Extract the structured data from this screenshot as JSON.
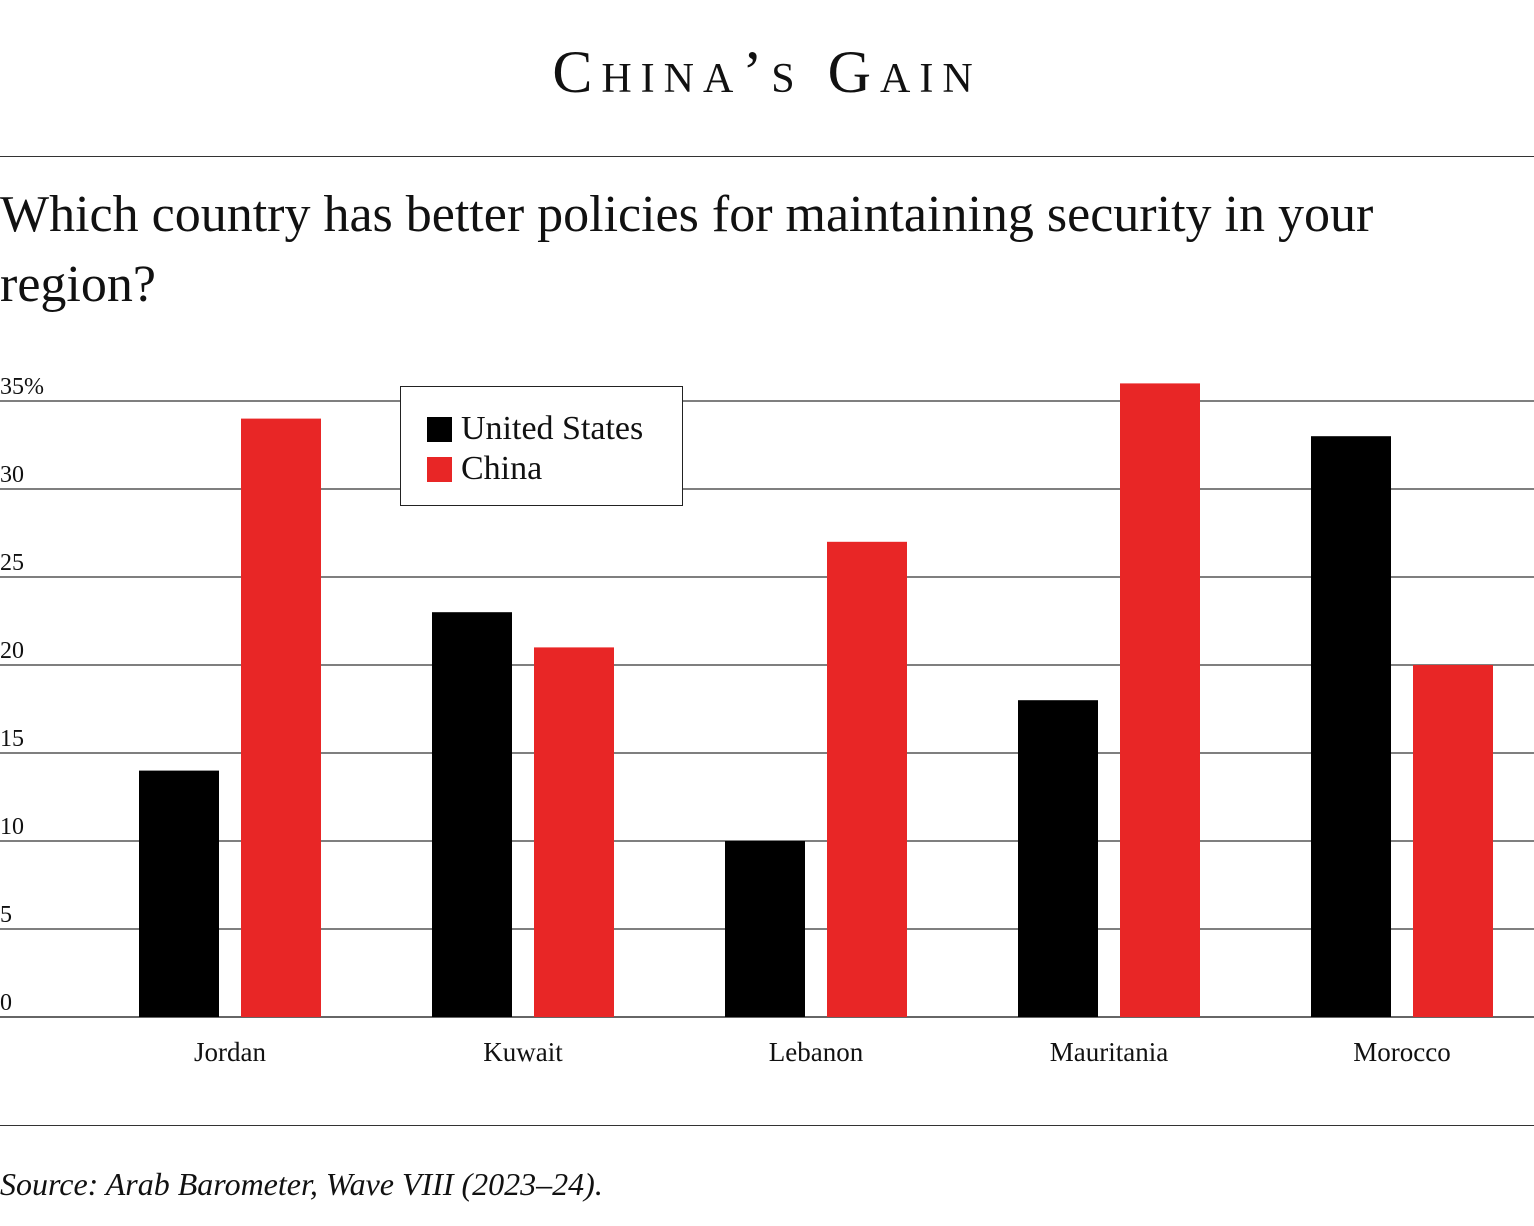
{
  "header": {
    "title": "China’s Gain",
    "question": "Which country has better policies for maintaining security in your region?"
  },
  "footer": {
    "source": "Source: Arab Barometer, Wave VIII (2023–24)."
  },
  "chart_data": {
    "type": "bar",
    "categories": [
      "Jordan",
      "Kuwait",
      "Lebanon",
      "Mauritania",
      "Morocco"
    ],
    "series": [
      {
        "name": "United States",
        "values": [
          14,
          23,
          10,
          18,
          33
        ],
        "color": "#000000"
      },
      {
        "name": "China",
        "values": [
          34,
          21,
          27,
          36,
          20
        ],
        "color": "#e82626"
      }
    ],
    "ylim": [
      0,
      35
    ],
    "yticks": [
      0,
      5,
      10,
      15,
      20,
      25,
      30,
      35
    ],
    "ytick_labels": [
      "0",
      "5",
      "10",
      "15",
      "20",
      "25",
      "30",
      "35%"
    ],
    "grid": true,
    "legend_position": "top-left",
    "xlabel": "",
    "ylabel": ""
  }
}
